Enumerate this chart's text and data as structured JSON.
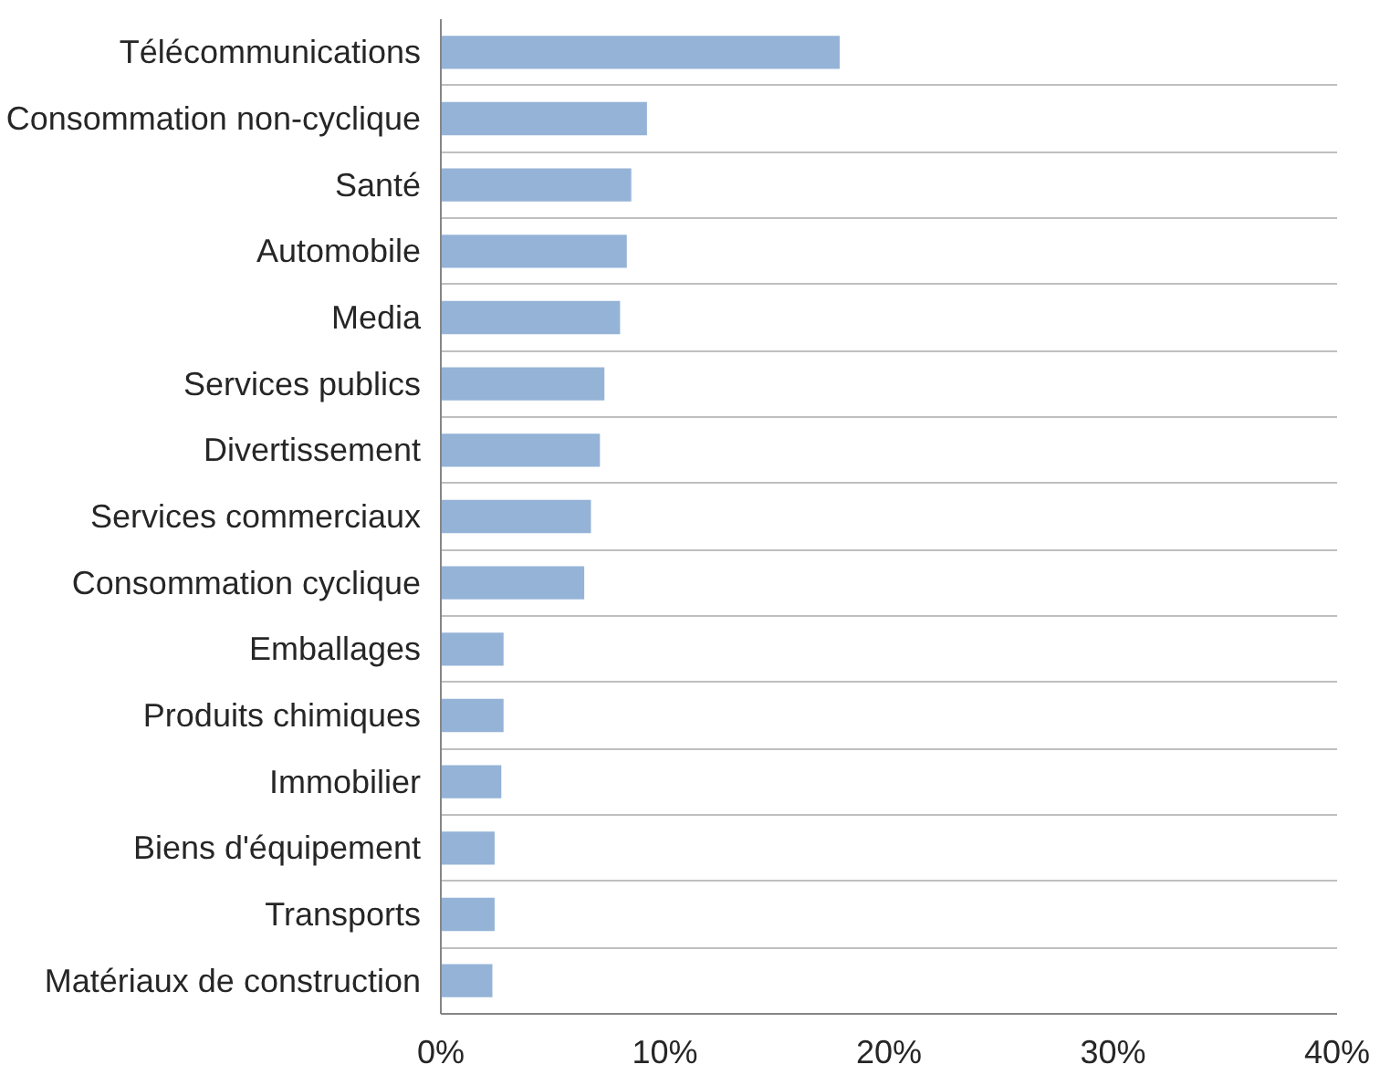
{
  "chart_data": {
    "type": "bar",
    "orientation": "horizontal",
    "categories": [
      "Télécommunications",
      "Consommation non-cyclique",
      "Santé",
      "Automobile",
      "Media",
      "Services publics",
      "Divertissement",
      "Services commerciaux",
      "Consommation cyclique",
      "Emballages",
      "Produits chimiques",
      "Immobilier",
      "Biens d'équipement",
      "Transports",
      "Matériaux de construction"
    ],
    "values": [
      17.8,
      9.2,
      8.5,
      8.3,
      8.0,
      7.3,
      7.1,
      6.7,
      6.4,
      2.8,
      2.8,
      2.7,
      2.4,
      2.4,
      2.3
    ],
    "color": "#95b3d7",
    "xlim": [
      0,
      40
    ],
    "xticks": [
      {
        "value": 0,
        "label": "0%"
      },
      {
        "value": 10,
        "label": "10%"
      },
      {
        "value": 20,
        "label": "20%"
      },
      {
        "value": 30,
        "label": "30%"
      },
      {
        "value": 40,
        "label": "40%"
      }
    ],
    "grid": "y"
  }
}
